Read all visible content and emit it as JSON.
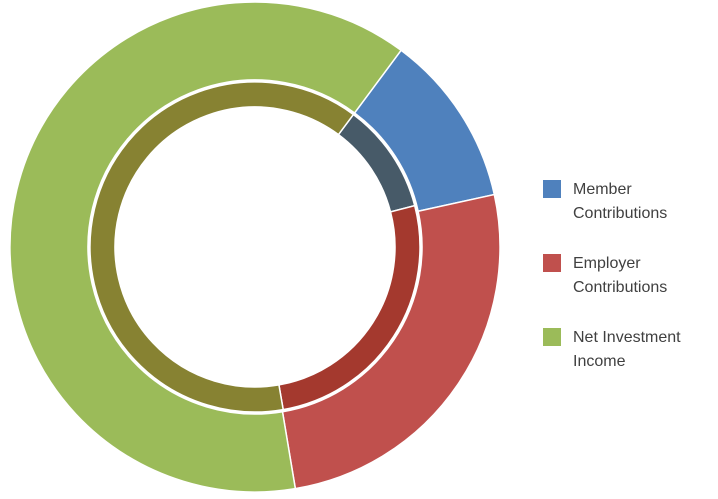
{
  "chart_data": {
    "type": "donut",
    "categories": [
      "Member Contributions",
      "Employer Contributions",
      "Net Investment Income"
    ],
    "colors": [
      "#4f81bd",
      "#c0504d",
      "#9bbb59"
    ],
    "start_angle": 36.6,
    "series": [
      {
        "values": [
          11.4,
          25.8,
          62.8
        ],
        "colors": [
          "#4f81bd",
          "#c0504d",
          "#9bbb59"
        ]
      },
      {
        "values": [
          10.8,
          26.3,
          62.9
        ],
        "colors": [
          "#475a68",
          "#a4392e",
          "#878232"
        ]
      }
    ]
  }
}
